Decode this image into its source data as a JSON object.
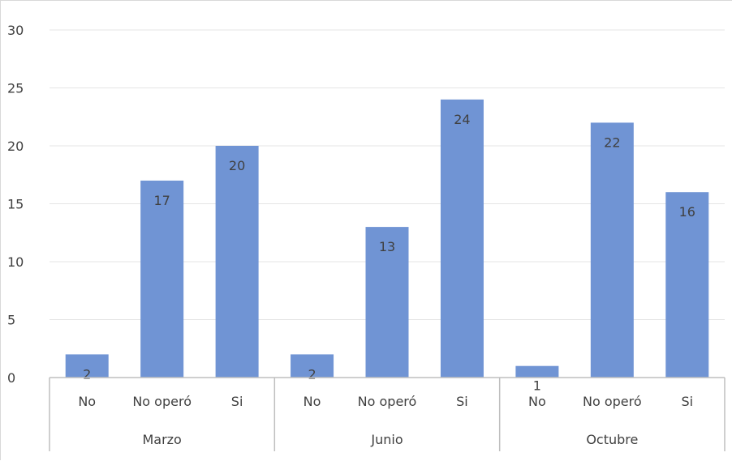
{
  "chart_data": {
    "type": "bar",
    "title": "",
    "xlabel": "",
    "ylabel": "",
    "ylim": [
      0,
      30
    ],
    "yticks": [
      0,
      5,
      10,
      15,
      20,
      25,
      30
    ],
    "grid": true,
    "legend": "none",
    "bar_color": "#7094d4",
    "groups": [
      {
        "name": "Marzo",
        "categories": [
          "No",
          "No operó",
          "Si"
        ],
        "values": [
          2,
          17,
          20
        ]
      },
      {
        "name": "Junio",
        "categories": [
          "No",
          "No operó",
          "Si"
        ],
        "values": [
          2,
          13,
          24
        ]
      },
      {
        "name": "Octubre",
        "categories": [
          "No",
          "No operó",
          "Si"
        ],
        "values": [
          1,
          22,
          16
        ]
      }
    ]
  }
}
